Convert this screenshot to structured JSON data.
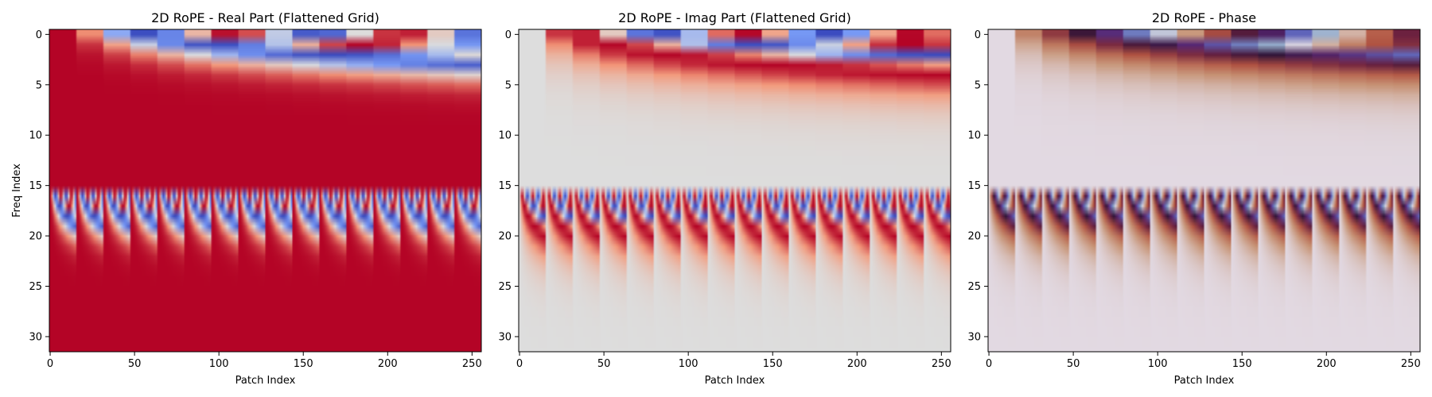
{
  "chart_data": [
    {
      "type": "heatmap",
      "title": "2D RoPE - Real Part (Flattened Grid)",
      "xlabel": "Patch Index",
      "ylabel": "Freq Index",
      "xlim": [
        0,
        256
      ],
      "ylim": [
        32,
        0
      ],
      "x_ticks": [
        0,
        50,
        100,
        150,
        200,
        250
      ],
      "y_ticks": [
        0,
        5,
        10,
        15,
        20,
        25,
        30
      ],
      "shape": [
        32,
        256
      ],
      "value_range": [
        -1,
        1
      ],
      "colormap": "coolwarm",
      "grid_side": 16,
      "component": "real"
    },
    {
      "type": "heatmap",
      "title": "2D RoPE - Imag Part (Flattened Grid)",
      "xlabel": "Patch Index",
      "ylabel": "",
      "xlim": [
        0,
        256
      ],
      "ylim": [
        32,
        0
      ],
      "x_ticks": [
        0,
        50,
        100,
        150,
        200,
        250
      ],
      "y_ticks": [
        0,
        5,
        10,
        15,
        20,
        25,
        30
      ],
      "shape": [
        32,
        256
      ],
      "value_range": [
        -1,
        1
      ],
      "colormap": "coolwarm",
      "grid_side": 16,
      "component": "imag"
    },
    {
      "type": "heatmap",
      "title": "2D RoPE - Phase",
      "xlabel": "Patch Index",
      "ylabel": "",
      "xlim": [
        0,
        256
      ],
      "ylim": [
        32,
        0
      ],
      "x_ticks": [
        0,
        50,
        100,
        150,
        200,
        250
      ],
      "y_ticks": [
        0,
        5,
        10,
        15,
        20,
        25,
        30
      ],
      "shape": [
        32,
        256
      ],
      "value_range": [
        -3.14159,
        3.14159
      ],
      "colormap": "twilight_shifted",
      "grid_side": 16,
      "component": "phase"
    }
  ]
}
